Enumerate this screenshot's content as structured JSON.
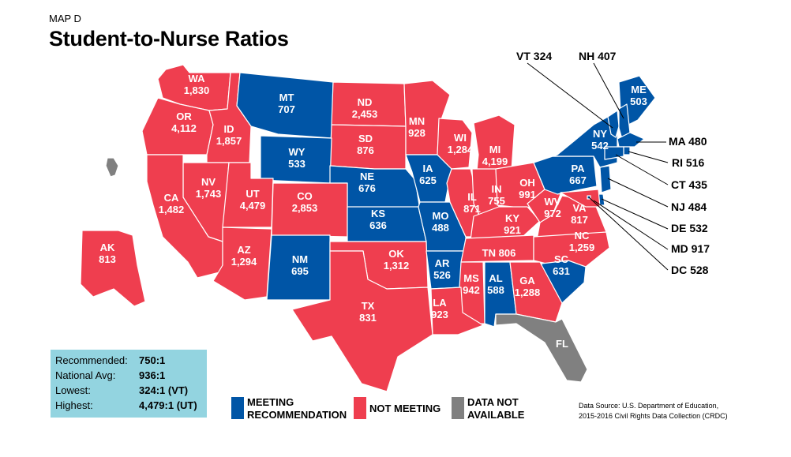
{
  "header": {
    "kicker": "MAP D",
    "title": "Student-to-Nurse Ratios"
  },
  "colors": {
    "meeting": "#0055a6",
    "not_meeting": "#ef3e4f",
    "na": "#808080",
    "stats_bg": "#93d4e0"
  },
  "states": {
    "WA": {
      "ratio": "1,830",
      "status": "not_meeting"
    },
    "OR": {
      "ratio": "4,112",
      "status": "not_meeting"
    },
    "ID": {
      "ratio": "1,857",
      "status": "not_meeting"
    },
    "MT": {
      "ratio": "707",
      "status": "meeting"
    },
    "ND": {
      "ratio": "2,453",
      "status": "not_meeting"
    },
    "MN": {
      "ratio": "928",
      "status": "not_meeting"
    },
    "WI": {
      "ratio": "1,284",
      "status": "not_meeting"
    },
    "MI": {
      "ratio": "4,199",
      "status": "not_meeting"
    },
    "SD": {
      "ratio": "876",
      "status": "not_meeting"
    },
    "WY": {
      "ratio": "533",
      "status": "meeting"
    },
    "NE": {
      "ratio": "676",
      "status": "meeting"
    },
    "IA": {
      "ratio": "625",
      "status": "meeting"
    },
    "NV": {
      "ratio": "1,743",
      "status": "not_meeting"
    },
    "UT": {
      "ratio": "4,479",
      "status": "not_meeting"
    },
    "CO": {
      "ratio": "2,853",
      "status": "not_meeting"
    },
    "CA": {
      "ratio": "1,482",
      "status": "not_meeting"
    },
    "KS": {
      "ratio": "636",
      "status": "meeting"
    },
    "MO": {
      "ratio": "488",
      "status": "meeting"
    },
    "IL": {
      "ratio": "871",
      "status": "not_meeting"
    },
    "IN": {
      "ratio": "755",
      "status": "not_meeting"
    },
    "OH": {
      "ratio": "991",
      "status": "not_meeting"
    },
    "KY": {
      "ratio": "921",
      "status": "not_meeting"
    },
    "WV": {
      "ratio": "972",
      "status": "not_meeting"
    },
    "VA": {
      "ratio": "817",
      "status": "not_meeting"
    },
    "PA": {
      "ratio": "667",
      "status": "meeting"
    },
    "NY": {
      "ratio": "542",
      "status": "meeting"
    },
    "ME": {
      "ratio": "503",
      "status": "meeting"
    },
    "AZ": {
      "ratio": "1,294",
      "status": "not_meeting"
    },
    "NM": {
      "ratio": "695",
      "status": "meeting"
    },
    "OK": {
      "ratio": "1,312",
      "status": "not_meeting"
    },
    "AR": {
      "ratio": "526",
      "status": "meeting"
    },
    "TN": {
      "ratio": "806",
      "status": "not_meeting"
    },
    "NC": {
      "ratio": "1,259",
      "status": "not_meeting"
    },
    "SC": {
      "ratio": "631",
      "status": "meeting"
    },
    "MS": {
      "ratio": "942",
      "status": "not_meeting"
    },
    "AL": {
      "ratio": "588",
      "status": "meeting"
    },
    "GA": {
      "ratio": "1,288",
      "status": "not_meeting"
    },
    "TX": {
      "ratio": "831",
      "status": "not_meeting"
    },
    "LA": {
      "ratio": "923",
      "status": "not_meeting"
    },
    "AK": {
      "ratio": "813",
      "status": "not_meeting"
    },
    "FL": {
      "ratio": "",
      "status": "na"
    },
    "HI": {
      "ratio": "",
      "status": "na"
    }
  },
  "callouts": [
    {
      "abbr": "VT",
      "ratio": "324"
    },
    {
      "abbr": "NH",
      "ratio": "407"
    },
    {
      "abbr": "MA",
      "ratio": "480"
    },
    {
      "abbr": "RI",
      "ratio": "516"
    },
    {
      "abbr": "CT",
      "ratio": "435"
    },
    {
      "abbr": "NJ",
      "ratio": "484"
    },
    {
      "abbr": "DE",
      "ratio": "532"
    },
    {
      "abbr": "MD",
      "ratio": "917"
    },
    {
      "abbr": "DC",
      "ratio": "528"
    }
  ],
  "stats": {
    "recommended_label": "Recommended:",
    "recommended_value": "750:1",
    "national_label": "National Avg:",
    "national_value": "936:1",
    "lowest_label": "Lowest:",
    "lowest_value": "324:1 (VT)",
    "highest_label": "Highest:",
    "highest_value": "4,479:1 (UT)"
  },
  "legend": {
    "meeting_line1": "MEETING",
    "meeting_line2": "RECOMMENDATION",
    "not_meeting": "NOT MEETING",
    "na_line1": "DATA NOT",
    "na_line2": "AVAILABLE"
  },
  "source": {
    "line1": "Data Source: U.S. Department of Education,",
    "line2": "2015-2016 Civil Rights Data Collection (CRDC)"
  }
}
